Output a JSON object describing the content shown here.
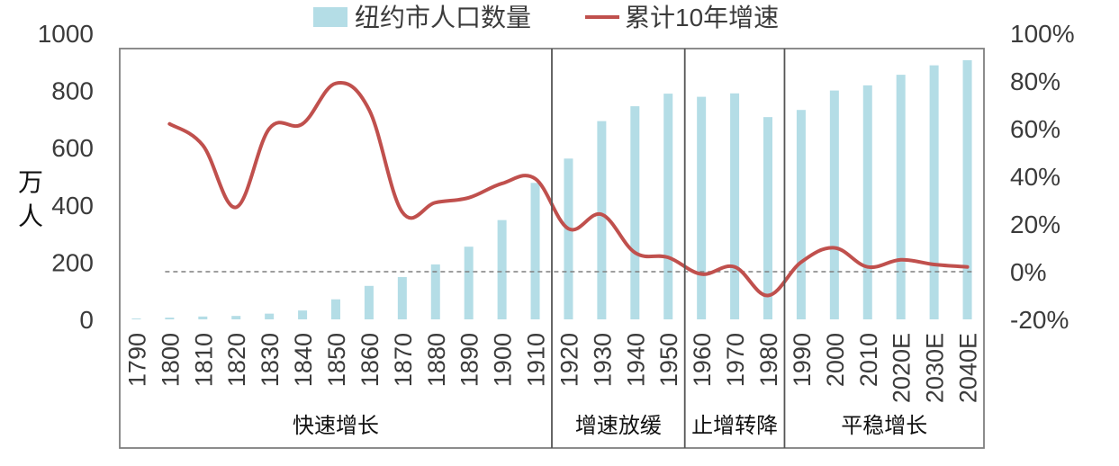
{
  "chart_data": {
    "type": "bar+line",
    "title": "",
    "legend": {
      "position": "top-center",
      "items": [
        {
          "label": "纽约市人口数量",
          "kind": "bar"
        },
        {
          "label": "累计10年增速",
          "kind": "line"
        }
      ]
    },
    "ylabel": "万人",
    "ylabel_chars": [
      "万",
      "人"
    ],
    "y_left": {
      "min": 0,
      "max": 1000,
      "ticks": [
        0,
        200,
        400,
        600,
        800,
        1000
      ],
      "tick_labels": [
        "0",
        "200",
        "400",
        "600",
        "800",
        "1000"
      ]
    },
    "y_right": {
      "min": -20,
      "max": 100,
      "ticks": [
        -20,
        0,
        20,
        40,
        60,
        80,
        100
      ],
      "tick_labels": [
        "-20%",
        "0%",
        "20%",
        "40%",
        "60%",
        "80%",
        "100%"
      ]
    },
    "categories": [
      "1790",
      "1800",
      "1810",
      "1820",
      "1830",
      "1840",
      "1850",
      "1860",
      "1870",
      "1880",
      "1890",
      "1900",
      "1910",
      "1920",
      "1930",
      "1940",
      "1950",
      "1960",
      "1970",
      "1980",
      "1990",
      "2000",
      "2010",
      "2020E",
      "2030E",
      "2040E"
    ],
    "series": [
      {
        "name": "纽约市人口数量",
        "type": "bar",
        "axis": "left",
        "color": "#b4dde6",
        "values": [
          3,
          6,
          10,
          12,
          20,
          31,
          70,
          117,
          148,
          192,
          254,
          347,
          477,
          562,
          693,
          745,
          789,
          778,
          790,
          707,
          732,
          800,
          818,
          855,
          888,
          906
        ]
      },
      {
        "name": "累计10年增速",
        "type": "line",
        "axis": "right",
        "color": "#c0504d",
        "start_index": 1,
        "values": [
          null,
          62,
          53,
          27,
          60,
          62,
          79,
          68,
          25,
          29,
          31,
          37,
          39,
          18,
          24,
          8,
          6,
          -1,
          2,
          -10,
          4,
          10,
          2,
          5,
          3,
          2
        ]
      }
    ],
    "reference_line": {
      "axis": "right",
      "value": 0,
      "style": "dashed",
      "color": "#7f7f7f"
    },
    "phases": [
      {
        "label": "快速增长",
        "start_index": 0,
        "end_index": 12
      },
      {
        "label": "增速放缓",
        "start_index": 13,
        "end_index": 16
      },
      {
        "label": "止增转降",
        "start_index": 17,
        "end_index": 19
      },
      {
        "label": "平稳增长",
        "start_index": 20,
        "end_index": 25
      }
    ],
    "colors": {
      "bar": "#b4dde6",
      "line": "#c0504d",
      "frame": "#7f7f7f",
      "reference": "#7f7f7f",
      "text": "#3b3b3b"
    }
  }
}
